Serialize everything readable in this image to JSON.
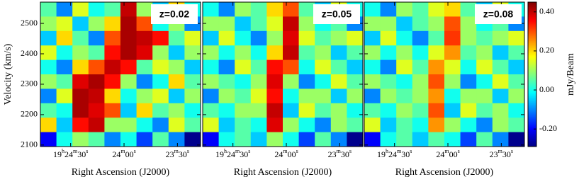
{
  "chart_data": {
    "type": "heatmap",
    "ylabel": "Velocity (km/s)",
    "xlabel": "Right Ascension (J2000)",
    "colorbar_label": "mJy/Beam",
    "colormap": "jet",
    "xlim": [
      1487,
      1397
    ],
    "xticks": [
      {
        "value": 1470,
        "label": "19h24m30s"
      },
      {
        "value": 1440,
        "label": "24m00s"
      },
      {
        "value": 1410,
        "label": "23m30s"
      }
    ],
    "ylim": [
      2095,
      2570
    ],
    "yticks": [
      2100,
      2200,
      2300,
      2400,
      2500
    ],
    "clim": [
      -0.29,
      0.45
    ],
    "cticks": [
      {
        "value": -0.2,
        "label": "-0.20"
      },
      {
        "value": 0,
        "label": "0.00"
      },
      {
        "value": 0.2,
        "label": "0.20"
      },
      {
        "value": 0.4,
        "label": "0.40"
      }
    ],
    "panels": [
      {
        "label": "z=0.02",
        "values": [
          [
            0.05,
            -0.1,
            0.15,
            0.0,
            0.05,
            0.4,
            0.1,
            -0.05,
            0.2,
            0.0
          ],
          [
            0.1,
            0.15,
            -0.05,
            0.1,
            0.2,
            0.42,
            0.3,
            0.0,
            0.1,
            -0.1
          ],
          [
            -0.05,
            0.2,
            0.05,
            -0.1,
            0.3,
            0.42,
            0.4,
            0.35,
            0.05,
            0.15
          ],
          [
            0.15,
            0.0,
            0.1,
            0.05,
            0.35,
            0.42,
            0.38,
            0.1,
            -0.05,
            0.1
          ],
          [
            0.0,
            -0.1,
            0.2,
            0.3,
            0.4,
            0.35,
            0.05,
            0.15,
            0.1,
            -0.05
          ],
          [
            0.1,
            0.05,
            0.38,
            0.42,
            0.35,
            0.1,
            -0.1,
            0.0,
            0.2,
            0.05
          ],
          [
            -0.1,
            0.15,
            0.42,
            0.4,
            0.2,
            0.0,
            0.1,
            0.15,
            -0.05,
            0.1
          ],
          [
            0.05,
            0.0,
            0.42,
            0.38,
            0.3,
            -0.05,
            0.2,
            0.05,
            0.1,
            0.0
          ],
          [
            0.2,
            -0.05,
            0.35,
            0.4,
            0.1,
            0.1,
            0.0,
            -0.1,
            0.15,
            0.05
          ],
          [
            -0.2,
            0.0,
            0.1,
            0.05,
            -0.1,
            0.0,
            -0.15,
            0.05,
            -0.1,
            -0.28
          ]
        ]
      },
      {
        "label": "z=0.05",
        "values": [
          [
            0.0,
            -0.1,
            0.1,
            0.05,
            0.2,
            0.3,
            0.05,
            -0.05,
            0.15,
            0.0
          ],
          [
            0.1,
            0.1,
            -0.05,
            0.05,
            0.15,
            0.4,
            0.1,
            0.0,
            0.05,
            -0.1
          ],
          [
            -0.05,
            0.15,
            0.0,
            -0.1,
            0.1,
            0.38,
            0.15,
            0.05,
            0.1,
            0.15
          ],
          [
            0.1,
            0.0,
            0.1,
            0.0,
            0.2,
            0.4,
            0.05,
            0.1,
            -0.05,
            0.05
          ],
          [
            0.0,
            -0.1,
            0.15,
            0.05,
            0.35,
            0.3,
            0.0,
            0.15,
            0.05,
            -0.05
          ],
          [
            0.1,
            0.05,
            0.0,
            0.1,
            0.38,
            0.1,
            -0.1,
            0.0,
            0.15,
            0.05
          ],
          [
            -0.1,
            0.1,
            0.05,
            0.15,
            0.35,
            0.0,
            0.1,
            0.1,
            -0.05,
            0.1
          ],
          [
            0.05,
            0.0,
            0.1,
            0.1,
            0.4,
            -0.05,
            0.15,
            0.05,
            0.1,
            0.0
          ],
          [
            0.15,
            -0.05,
            0.05,
            0.0,
            0.38,
            0.1,
            0.0,
            -0.1,
            0.1,
            0.05
          ],
          [
            -0.2,
            0.0,
            0.05,
            -0.05,
            0.1,
            0.0,
            -0.15,
            0.05,
            -0.1,
            -0.28
          ]
        ]
      },
      {
        "label": "z=0.08",
        "values": [
          [
            0.0,
            -0.1,
            0.1,
            0.05,
            0.15,
            0.2,
            0.05,
            -0.05,
            0.15,
            0.0
          ],
          [
            0.1,
            0.1,
            -0.05,
            0.05,
            0.1,
            0.3,
            0.1,
            0.0,
            0.05,
            -0.1
          ],
          [
            -0.05,
            0.15,
            0.0,
            -0.1,
            0.05,
            0.32,
            0.1,
            0.05,
            0.1,
            0.15
          ],
          [
            0.1,
            0.0,
            0.1,
            0.0,
            0.15,
            0.25,
            0.05,
            0.1,
            -0.05,
            0.05
          ],
          [
            0.0,
            -0.1,
            0.15,
            0.05,
            0.25,
            0.15,
            0.0,
            0.15,
            0.05,
            -0.05
          ],
          [
            0.1,
            0.05,
            0.0,
            0.1,
            0.3,
            0.1,
            -0.1,
            0.0,
            0.15,
            0.05
          ],
          [
            -0.1,
            0.1,
            0.05,
            0.1,
            0.25,
            0.0,
            0.1,
            0.1,
            -0.05,
            0.1
          ],
          [
            0.05,
            0.0,
            0.1,
            0.05,
            0.3,
            -0.05,
            0.15,
            0.05,
            0.1,
            0.0
          ],
          [
            0.15,
            -0.05,
            0.05,
            0.0,
            0.25,
            0.1,
            0.0,
            -0.1,
            0.1,
            0.05
          ],
          [
            -0.2,
            0.0,
            0.05,
            -0.05,
            0.05,
            0.0,
            -0.15,
            0.05,
            -0.1,
            -0.28
          ]
        ]
      }
    ]
  }
}
